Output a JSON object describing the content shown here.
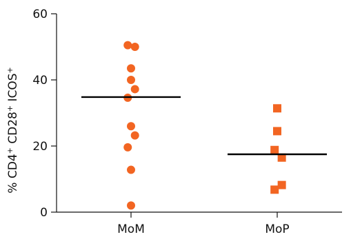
{
  "chart_data": {
    "type": "scatter",
    "ylabel_parts": [
      "% CD4",
      "+",
      " CD28",
      "+",
      " ICOS",
      "+"
    ],
    "ylim": [
      0,
      60
    ],
    "yticks": [
      0,
      20,
      40,
      60
    ],
    "grid": false,
    "categories": [
      "MoM",
      "MoP"
    ],
    "series": [
      {
        "category": "MoM",
        "marker": "circle",
        "color": "#f26522",
        "median": 34.8,
        "points": [
          {
            "x": -0.05,
            "y": 50.5
          },
          {
            "x": 0.06,
            "y": 50.0
          },
          {
            "x": 0.0,
            "y": 43.5
          },
          {
            "x": 0.0,
            "y": 40.0
          },
          {
            "x": 0.06,
            "y": 37.2
          },
          {
            "x": -0.05,
            "y": 34.6
          },
          {
            "x": 0.0,
            "y": 26.0
          },
          {
            "x": 0.06,
            "y": 23.2
          },
          {
            "x": -0.05,
            "y": 19.6
          },
          {
            "x": 0.0,
            "y": 12.8
          },
          {
            "x": 0.0,
            "y": 2.0
          }
        ]
      },
      {
        "category": "MoP",
        "marker": "square",
        "color": "#f26522",
        "median": 17.5,
        "points": [
          {
            "x": 0.0,
            "y": 31.4
          },
          {
            "x": 0.0,
            "y": 24.5
          },
          {
            "x": -0.04,
            "y": 18.8
          },
          {
            "x": 0.07,
            "y": 16.5
          },
          {
            "x": 0.07,
            "y": 8.2
          },
          {
            "x": -0.04,
            "y": 6.8
          }
        ]
      }
    ]
  }
}
